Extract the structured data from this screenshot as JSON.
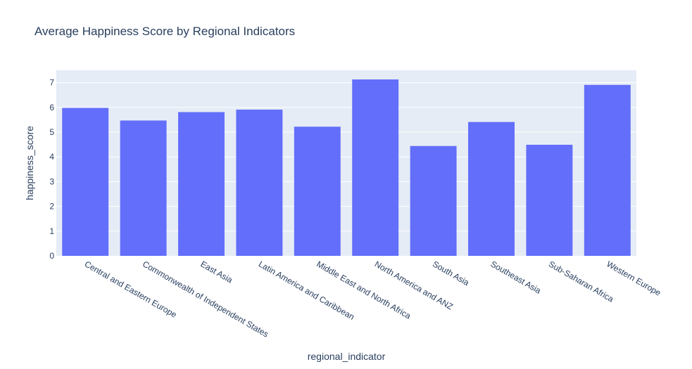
{
  "chart_data": {
    "type": "bar",
    "title": "Average Happiness Score by Regional Indicators",
    "xlabel": "regional_indicator",
    "ylabel": "happiness_score",
    "categories": [
      "Central and Eastern Europe",
      "Commonwealth of Independent States",
      "East Asia",
      "Latin America and Caribbean",
      "Middle East and North Africa",
      "North America and ANZ",
      "South Asia",
      "Southeast Asia",
      "Sub-Saharan Africa",
      "Western Europe"
    ],
    "values": [
      5.98,
      5.47,
      5.81,
      5.91,
      5.22,
      7.13,
      4.44,
      5.41,
      4.49,
      6.91
    ],
    "ylim": [
      0,
      7.5
    ],
    "yticks": [
      0,
      1,
      2,
      3,
      4,
      5,
      6,
      7
    ],
    "grid": true,
    "bar_color": "#636efa",
    "plot_background": "#e5ecf6",
    "grid_color": "#ffffff",
    "text_color": "#2a3f5f"
  }
}
